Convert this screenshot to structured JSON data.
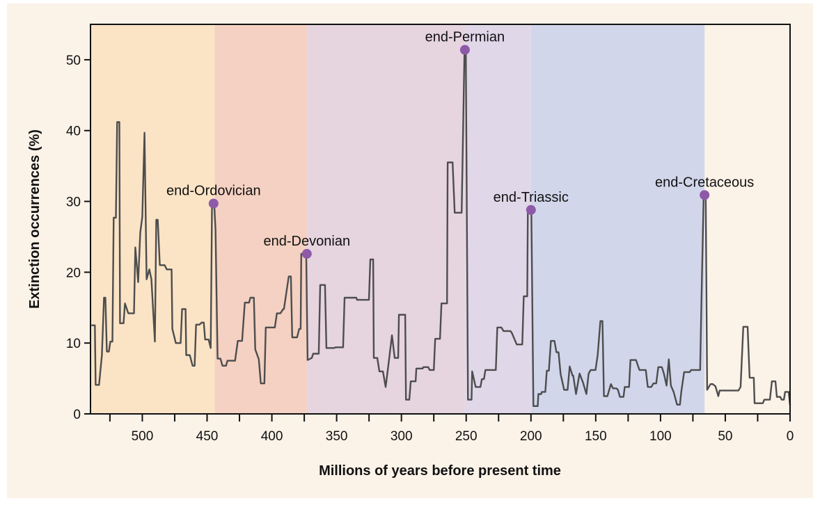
{
  "chart_data": {
    "type": "line",
    "title": "",
    "xlabel": "Millions of years before present time",
    "ylabel": "Extinction occurrences (%)",
    "xlim": [
      540,
      0
    ],
    "ylim": [
      0,
      55
    ],
    "x_reversed": true,
    "x_ticks_major": [
      500,
      450,
      400,
      350,
      300,
      250,
      200,
      150,
      100,
      50,
      0
    ],
    "x_tick_minor_step": 25,
    "y_ticks": [
      0,
      10,
      20,
      30,
      40,
      50
    ],
    "grid": false,
    "colors": {
      "background": "#fbf2e8",
      "line": "#4d4d4d",
      "event_marker": "#8e5aa8",
      "axis": "#111111"
    },
    "bands": [
      {
        "from": 540,
        "to": 444,
        "color": "#fbe3c6"
      },
      {
        "from": 444,
        "to": 373,
        "color": "#f4d1c2"
      },
      {
        "from": 373,
        "to": 251,
        "color": "#e6d4df"
      },
      {
        "from": 251,
        "to": 200,
        "color": "#e0d7e9"
      },
      {
        "from": 200,
        "to": 66,
        "color": "#d1d6eb"
      }
    ],
    "events": [
      {
        "label": "end-Ordovician",
        "x": 445,
        "y": 29.7
      },
      {
        "label": "end-Devonian",
        "x": 373,
        "y": 22.6
      },
      {
        "label": "end-Permian",
        "x": 251,
        "y": 51.4
      },
      {
        "label": "end-Triassic",
        "x": 200,
        "y": 28.8
      },
      {
        "label": "end-Cretaceous",
        "x": 66,
        "y": 30.9
      }
    ],
    "series": [
      {
        "points": [
          [
            539.3,
            12.5
          ],
          [
            536.6,
            12.5
          ],
          [
            536.0,
            4.1
          ],
          [
            533.4,
            4.1
          ],
          [
            531.2,
            8.3
          ],
          [
            529.6,
            16.4
          ],
          [
            528.5,
            16.4
          ],
          [
            527.4,
            8.8
          ],
          [
            525.8,
            8.8
          ],
          [
            524.7,
            10.2
          ],
          [
            523.1,
            10.2
          ],
          [
            522.1,
            27.7
          ],
          [
            520.4,
            27.7
          ],
          [
            519.4,
            41.2
          ],
          [
            517.7,
            41.2
          ],
          [
            517.2,
            12.8
          ],
          [
            514.5,
            12.8
          ],
          [
            513.4,
            15.6
          ],
          [
            510.8,
            14.2
          ],
          [
            506.4,
            14.2
          ],
          [
            505.4,
            23.5
          ],
          [
            503.2,
            18.6
          ],
          [
            501.6,
            25.6
          ],
          [
            500.0,
            27.8
          ],
          [
            498.3,
            39.7
          ],
          [
            496.7,
            19.0
          ],
          [
            494.6,
            20.4
          ],
          [
            493.0,
            19.0
          ],
          [
            490.3,
            10.2
          ],
          [
            489.2,
            27.4
          ],
          [
            488.1,
            27.4
          ],
          [
            486.5,
            21.0
          ],
          [
            482.8,
            21.0
          ],
          [
            481.1,
            20.4
          ],
          [
            477.4,
            20.4
          ],
          [
            476.8,
            12.0
          ],
          [
            474.1,
            10.0
          ],
          [
            470.4,
            10.0
          ],
          [
            469.3,
            14.8
          ],
          [
            466.6,
            14.8
          ],
          [
            466.1,
            8.3
          ],
          [
            463.4,
            8.3
          ],
          [
            461.2,
            6.8
          ],
          [
            459.6,
            6.8
          ],
          [
            458.5,
            12.6
          ],
          [
            455.9,
            12.6
          ],
          [
            454.2,
            12.9
          ],
          [
            452.6,
            12.9
          ],
          [
            451.5,
            10.5
          ],
          [
            448.8,
            10.5
          ],
          [
            447.2,
            9.3
          ],
          [
            446.2,
            29.7
          ],
          [
            444.5,
            29.7
          ],
          [
            443.5,
            26.0
          ],
          [
            441.9,
            7.8
          ],
          [
            439.7,
            7.8
          ],
          [
            438.1,
            6.8
          ],
          [
            435.4,
            6.8
          ],
          [
            434.3,
            7.5
          ],
          [
            428.4,
            7.5
          ],
          [
            426.3,
            10.3
          ],
          [
            423.0,
            10.3
          ],
          [
            420.9,
            15.7
          ],
          [
            417.6,
            15.7
          ],
          [
            416.6,
            16.4
          ],
          [
            413.9,
            16.4
          ],
          [
            412.8,
            9.1
          ],
          [
            410.1,
            7.7
          ],
          [
            408.5,
            4.3
          ],
          [
            405.8,
            4.3
          ],
          [
            404.7,
            12.2
          ],
          [
            397.7,
            12.2
          ],
          [
            396.1,
            14.2
          ],
          [
            393.4,
            14.2
          ],
          [
            391.2,
            14.8
          ],
          [
            390.7,
            14.8
          ],
          [
            387.0,
            19.4
          ],
          [
            385.3,
            19.4
          ],
          [
            384.3,
            10.8
          ],
          [
            380.5,
            10.8
          ],
          [
            378.9,
            12.0
          ],
          [
            377.8,
            12.0
          ],
          [
            377.3,
            22.6
          ],
          [
            373.5,
            22.6
          ],
          [
            372.4,
            7.6
          ],
          [
            369.2,
            7.9
          ],
          [
            368.1,
            8.5
          ],
          [
            363.8,
            8.5
          ],
          [
            362.7,
            18.2
          ],
          [
            359.0,
            18.2
          ],
          [
            357.9,
            9.3
          ],
          [
            352.0,
            9.3
          ],
          [
            350.9,
            9.4
          ],
          [
            345.0,
            9.4
          ],
          [
            343.9,
            16.4
          ],
          [
            334.8,
            16.4
          ],
          [
            334.2,
            16.1
          ],
          [
            325.1,
            16.1
          ],
          [
            324.0,
            21.8
          ],
          [
            321.8,
            21.8
          ],
          [
            321.3,
            7.9
          ],
          [
            318.6,
            7.9
          ],
          [
            317.0,
            6.0
          ],
          [
            314.3,
            6.0
          ],
          [
            312.2,
            3.8
          ],
          [
            310.0,
            7.0
          ],
          [
            307.3,
            11.1
          ],
          [
            305.2,
            7.9
          ],
          [
            302.5,
            7.9
          ],
          [
            301.9,
            14.0
          ],
          [
            297.1,
            14.0
          ],
          [
            296.5,
            2.0
          ],
          [
            293.9,
            2.0
          ],
          [
            292.8,
            4.6
          ],
          [
            289.0,
            4.6
          ],
          [
            288.5,
            6.4
          ],
          [
            283.6,
            6.4
          ],
          [
            283.1,
            6.6
          ],
          [
            279.3,
            6.6
          ],
          [
            278.3,
            6.2
          ],
          [
            275.0,
            6.2
          ],
          [
            273.9,
            10.6
          ],
          [
            270.2,
            10.6
          ],
          [
            269.1,
            15.6
          ],
          [
            264.8,
            15.6
          ],
          [
            264.3,
            35.5
          ],
          [
            260.5,
            35.5
          ],
          [
            258.9,
            28.4
          ],
          [
            253.5,
            28.4
          ],
          [
            251.3,
            51.4
          ],
          [
            250.3,
            51.4
          ],
          [
            248.6,
            2.0
          ],
          [
            245.9,
            2.0
          ],
          [
            245.4,
            6.0
          ],
          [
            242.7,
            3.8
          ],
          [
            239.0,
            3.8
          ],
          [
            237.9,
            4.9
          ],
          [
            236.3,
            4.9
          ],
          [
            235.2,
            6.2
          ],
          [
            227.1,
            6.2
          ],
          [
            226.0,
            12.2
          ],
          [
            222.8,
            12.2
          ],
          [
            221.2,
            11.7
          ],
          [
            215.8,
            11.7
          ],
          [
            214.7,
            11.4
          ],
          [
            211.0,
            9.8
          ],
          [
            206.7,
            9.8
          ],
          [
            205.6,
            16.6
          ],
          [
            202.9,
            16.6
          ],
          [
            202.4,
            28.8
          ],
          [
            199.7,
            28.8
          ],
          [
            198.1,
            1.1
          ],
          [
            194.8,
            1.1
          ],
          [
            194.3,
            2.8
          ],
          [
            192.1,
            2.8
          ],
          [
            191.6,
            3.1
          ],
          [
            188.9,
            3.1
          ],
          [
            187.8,
            6.1
          ],
          [
            186.2,
            6.1
          ],
          [
            184.6,
            10.3
          ],
          [
            181.9,
            10.3
          ],
          [
            180.3,
            8.7
          ],
          [
            178.7,
            8.7
          ],
          [
            177.1,
            5.6
          ],
          [
            174.4,
            3.4
          ],
          [
            171.7,
            3.4
          ],
          [
            170.1,
            6.7
          ],
          [
            167.9,
            5.4
          ],
          [
            167.4,
            5.4
          ],
          [
            165.2,
            2.8
          ],
          [
            162.5,
            5.7
          ],
          [
            159.8,
            4.4
          ],
          [
            157.2,
            2.8
          ],
          [
            155.5,
            5.7
          ],
          [
            153.9,
            6.2
          ],
          [
            150.2,
            6.2
          ],
          [
            148.5,
            8.3
          ],
          [
            146.4,
            13.1
          ],
          [
            144.8,
            13.1
          ],
          [
            143.7,
            2.5
          ],
          [
            141.0,
            2.5
          ],
          [
            138.3,
            4.2
          ],
          [
            136.7,
            3.6
          ],
          [
            134.0,
            3.6
          ],
          [
            132.9,
            3.4
          ],
          [
            131.3,
            2.4
          ],
          [
            128.6,
            2.4
          ],
          [
            127.6,
            3.8
          ],
          [
            124.3,
            3.8
          ],
          [
            123.2,
            7.6
          ],
          [
            118.9,
            7.6
          ],
          [
            116.3,
            6.2
          ],
          [
            111.4,
            6.2
          ],
          [
            109.8,
            3.8
          ],
          [
            107.1,
            3.8
          ],
          [
            105.5,
            4.3
          ],
          [
            103.3,
            4.3
          ],
          [
            101.7,
            6.6
          ],
          [
            99.0,
            6.6
          ],
          [
            97.4,
            5.7
          ],
          [
            95.3,
            4.0
          ],
          [
            93.6,
            7.7
          ],
          [
            92.0,
            4.0
          ],
          [
            89.9,
            3.1
          ],
          [
            87.2,
            1.3
          ],
          [
            85.0,
            1.3
          ],
          [
            84.0,
            3.1
          ],
          [
            81.8,
            5.9
          ],
          [
            77.5,
            5.9
          ],
          [
            76.4,
            6.2
          ],
          [
            69.4,
            6.2
          ],
          [
            68.4,
            16.0
          ],
          [
            66.7,
            30.9
          ],
          [
            65.1,
            30.9
          ],
          [
            64.0,
            3.4
          ],
          [
            61.4,
            4.2
          ],
          [
            59.7,
            4.2
          ],
          [
            57.6,
            3.9
          ],
          [
            55.4,
            2.5
          ],
          [
            54.4,
            3.3
          ],
          [
            39.8,
            3.3
          ],
          [
            38.2,
            3.8
          ],
          [
            36.1,
            12.3
          ],
          [
            32.8,
            12.3
          ],
          [
            31.2,
            5.1
          ],
          [
            28.0,
            5.1
          ],
          [
            27.4,
            1.5
          ],
          [
            21.0,
            1.5
          ],
          [
            19.9,
            2.0
          ],
          [
            15.6,
            2.0
          ],
          [
            14.0,
            4.6
          ],
          [
            11.3,
            4.6
          ],
          [
            10.2,
            2.4
          ],
          [
            7.5,
            2.4
          ],
          [
            6.5,
            2.0
          ],
          [
            4.8,
            2.0
          ],
          [
            3.8,
            3.1
          ],
          [
            1.1,
            3.1
          ],
          [
            0,
            1.2
          ]
        ]
      }
    ]
  }
}
